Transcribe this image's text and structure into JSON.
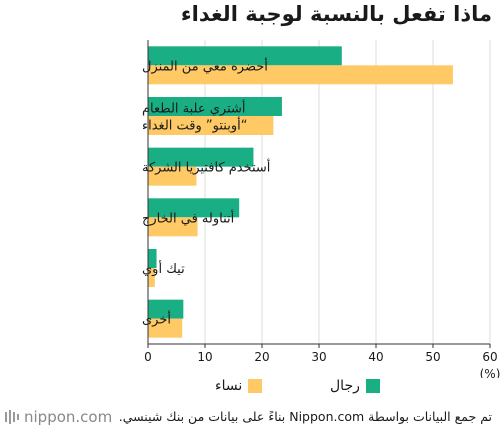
{
  "chart_data": {
    "type": "bar",
    "orientation": "horizontal",
    "title": "ماذا تفعل بالنسبة لوجبة الغداء",
    "categories": [
      [
        "أحضره معي من المنزل"
      ],
      [
        "أشتري علبة الطعام",
        "“أوبنتو” وقت الغداء"
      ],
      [
        "أستخدم كافتيريا الشركة"
      ],
      [
        "أتناوله في الخارج"
      ],
      [
        "تيك أوي"
      ],
      [
        "أخرى"
      ]
    ],
    "series": [
      {
        "name": "رجال",
        "color": "#1aae85",
        "values": [
          34,
          23.5,
          18.5,
          16,
          1.5,
          6.2
        ]
      },
      {
        "name": "نساء",
        "color": "#ffc966",
        "values": [
          53.5,
          22,
          8.5,
          8.7,
          1.2,
          6
        ]
      }
    ],
    "xlim": [
      0,
      60
    ],
    "xticks": [
      0,
      10,
      20,
      30,
      40,
      50,
      60
    ],
    "x_unit": "(%)",
    "legend_position": "bottom",
    "grid": true
  },
  "footer": {
    "logo": "nippon.com",
    "source": "تم جمع البيانات بواسطة Nippon.com بناءً على بيانات من بنك شينسي."
  },
  "colors": {
    "men": "#1aae85",
    "women": "#ffc966",
    "grid": "#dddddd"
  }
}
